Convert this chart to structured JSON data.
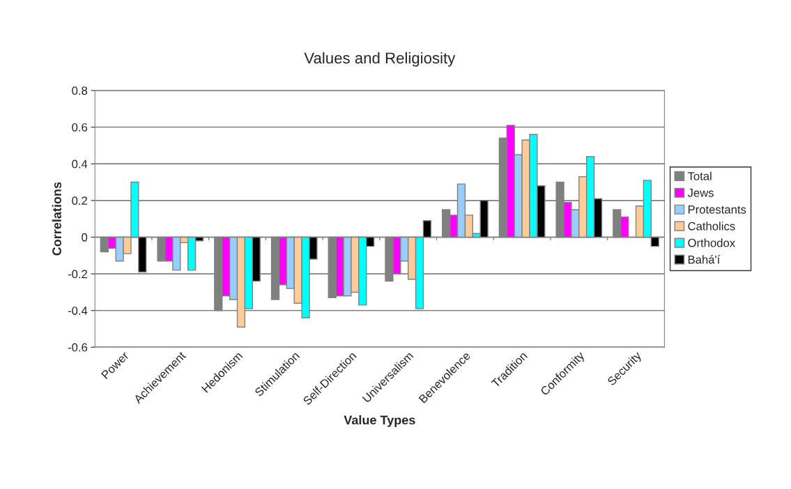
{
  "chart_data": {
    "type": "bar",
    "title": "Values and Religiosity",
    "xlabel": "Value Types",
    "ylabel": "Correlations",
    "categories": [
      "Power",
      "Achievement",
      "Hedonism",
      "Stimulation",
      "Self-Direction",
      "Universalism",
      "Benevolence",
      "Tradition",
      "Conformity",
      "Security"
    ],
    "series": [
      {
        "name": "Total",
        "color": "#808080",
        "values": [
          -0.08,
          -0.13,
          -0.4,
          -0.34,
          -0.33,
          -0.24,
          0.15,
          0.54,
          0.3,
          0.15
        ]
      },
      {
        "name": "Jews",
        "color": "#ff00ff",
        "values": [
          -0.06,
          -0.13,
          -0.32,
          -0.26,
          -0.32,
          -0.2,
          0.12,
          0.61,
          0.19,
          0.11
        ]
      },
      {
        "name": "Protestants",
        "color": "#99ccff",
        "values": [
          -0.13,
          -0.18,
          -0.34,
          -0.28,
          -0.32,
          -0.13,
          0.29,
          0.45,
          0.15,
          null
        ]
      },
      {
        "name": "Catholics",
        "color": "#ffcc99",
        "values": [
          -0.09,
          -0.03,
          -0.49,
          -0.36,
          -0.3,
          -0.23,
          0.12,
          0.53,
          0.33,
          0.17
        ]
      },
      {
        "name": "Orthodox",
        "color": "#00ffff",
        "values": [
          0.3,
          -0.18,
          -0.39,
          -0.44,
          -0.37,
          -0.39,
          0.02,
          0.56,
          0.44,
          0.31
        ]
      },
      {
        "name": "Bahá'í",
        "color": "#000000",
        "values": [
          -0.19,
          -0.02,
          -0.24,
          -0.12,
          -0.05,
          0.09,
          0.2,
          0.28,
          0.21,
          -0.05
        ]
      }
    ],
    "ylim": [
      -0.6,
      0.8
    ],
    "yticks": [
      {
        "value": -0.6,
        "label": "-0.6"
      },
      {
        "value": -0.4,
        "label": "-0.4"
      },
      {
        "value": -0.2,
        "label": "-0.2"
      },
      0,
      0.2,
      0.4,
      0.6,
      0.8
    ],
    "grid": "y",
    "legend": "right"
  }
}
